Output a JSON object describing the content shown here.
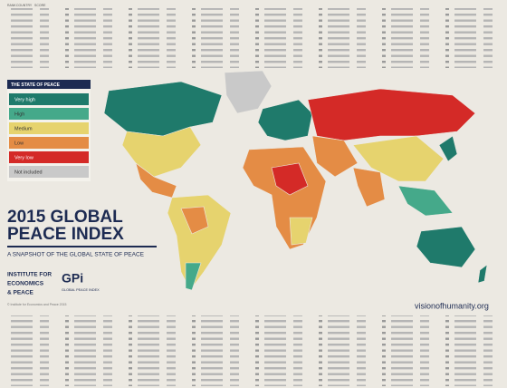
{
  "header_columns": [
    "RANK",
    "COUNTRY",
    "SCORE"
  ],
  "legend": {
    "title": "THE STATE OF PEACE",
    "items": [
      {
        "label": "Very high",
        "color": "#1f7a6b"
      },
      {
        "label": "High",
        "color": "#45a98a"
      },
      {
        "label": "Medium",
        "color": "#e6d36e"
      },
      {
        "label": "Low",
        "color": "#e48c45"
      },
      {
        "label": "Very low",
        "color": "#d42a27"
      },
      {
        "label": "Not included",
        "color": "#c9c9c9"
      }
    ]
  },
  "title": [
    "2015 GLOBAL",
    "PEACE INDEX"
  ],
  "subtitle": "A SNAPSHOT OF THE GLOBAL STATE OF PEACE",
  "logo_iep": [
    "INSTITUTE FOR",
    "ECONOMICS",
    "& PEACE"
  ],
  "logo_gpi": [
    "GPi",
    "GLOBAL PEACE INDEX"
  ],
  "copyright": "© Institute for Economics and Peace 2015",
  "website": "visionofhumanity.org"
}
